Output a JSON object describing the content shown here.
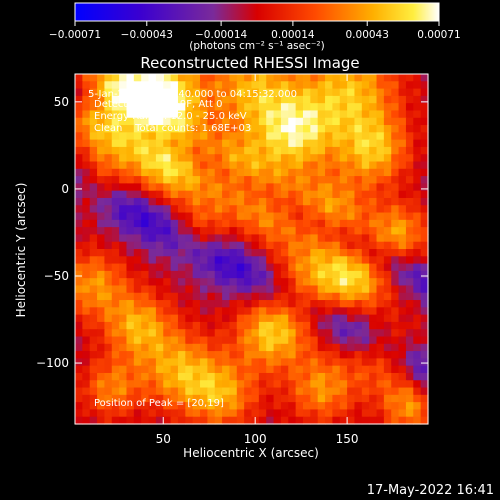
{
  "chart_data": {
    "type": "heatmap",
    "title": "Reconstructed RHESSI Image",
    "xlabel": "Heliocentric X (arcsec)",
    "ylabel": "Heliocentric Y (arcsec)",
    "xlim": [
      2,
      194
    ],
    "ylim": [
      -135,
      66
    ],
    "xticks": [
      50,
      100,
      150
    ],
    "yticks": [
      50,
      0,
      -50,
      -100
    ],
    "yticklabels": [
      "50",
      "0",
      "−50",
      "−100"
    ],
    "colorbar": {
      "range": [
        -0.00071,
        0.00071
      ],
      "ticks": [
        -0.00071,
        -0.00043,
        -0.00014,
        0.00014,
        0.00043,
        0.00071
      ],
      "ticklabels": [
        "−0.00071",
        "−0.00043",
        "−0.00014",
        "0.00014",
        "0.00043",
        "0.00071"
      ],
      "unit_label": "(photons cm⁻² s⁻¹ asec⁻²)",
      "colors": [
        "#0000ff",
        "#5a00b4",
        "#7a2a9a",
        "#ff0000",
        "#ff7a00",
        "#ffd800",
        "#ffffff"
      ]
    },
    "annotations": {
      "time": "5-Jan-2016 04:12:40.000 to 04:15:32.000",
      "detectors": "Detectors: 3F 7F 9F, Att 0",
      "energy": "Energy Range: 12.0 - 25.0 keV",
      "algorithm": "Clean    Total counts: 1.68E+03",
      "peak": "Position of Peak = [20,19]"
    },
    "footer_date": "17-May-2022 16:41"
  }
}
